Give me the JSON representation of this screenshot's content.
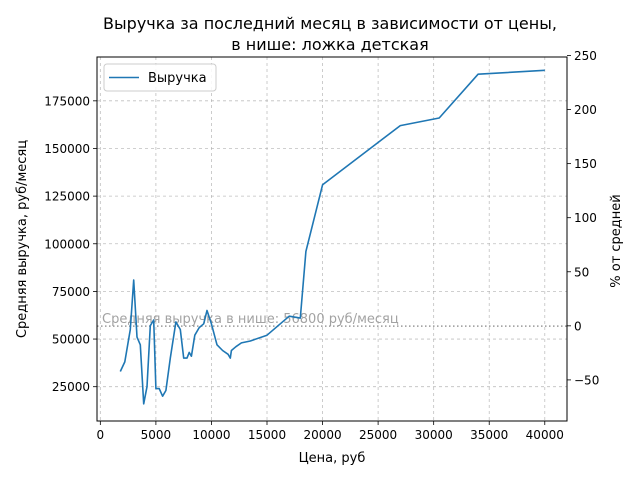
{
  "chart_data": {
    "type": "line",
    "title_line1": "Выручка за последний месяц в зависимости от цены,",
    "title_line2": "в нише: ложка детская",
    "xlabel": "Цена, руб",
    "ylabel": "Средняя выручка, руб/месяц",
    "y2label": "% от средней",
    "xlim": [
      -300,
      42000
    ],
    "ylim": [
      7000,
      198000
    ],
    "y2lim": [
      -88.0,
      248.6
    ],
    "x_ticks": [
      0,
      5000,
      10000,
      15000,
      20000,
      25000,
      30000,
      35000,
      40000
    ],
    "y_ticks": [
      25000,
      50000,
      75000,
      100000,
      125000,
      150000,
      175000
    ],
    "y2_ticks": [
      -50,
      0,
      50,
      100,
      150,
      200,
      250
    ],
    "grid": true,
    "legend_position": "top-left",
    "colors": {
      "series": "#1f77b4",
      "reference": "#999999",
      "grid": "#b0b0b0"
    },
    "reference_line": {
      "value": 56800,
      "label": "Средняя выручка в нише: 56800 руб/месяц"
    },
    "series": [
      {
        "name": "Выручка",
        "x": [
          1800,
          2200,
          2700,
          3000,
          3300,
          3600,
          3900,
          4200,
          4500,
          4800,
          5000,
          5300,
          5600,
          5900,
          6300,
          6800,
          7200,
          7500,
          7800,
          8000,
          8200,
          8500,
          8900,
          9300,
          9600,
          10000,
          10500,
          11000,
          11500,
          11700,
          11800,
          12200,
          12700,
          13500,
          15000,
          17000,
          18000,
          18500,
          20000,
          27000,
          30500,
          34000,
          40000
        ],
        "y": [
          33000,
          38000,
          55000,
          81000,
          51000,
          47000,
          16000,
          25000,
          57000,
          60000,
          24000,
          24000,
          20000,
          23000,
          40000,
          59000,
          55000,
          40000,
          40000,
          43000,
          41000,
          52000,
          56000,
          58000,
          65000,
          58000,
          47000,
          44000,
          42000,
          40000,
          44000,
          46000,
          48000,
          49000,
          52000,
          62000,
          61000,
          96000,
          131000,
          162000,
          166000,
          189000,
          191000
        ]
      }
    ]
  }
}
